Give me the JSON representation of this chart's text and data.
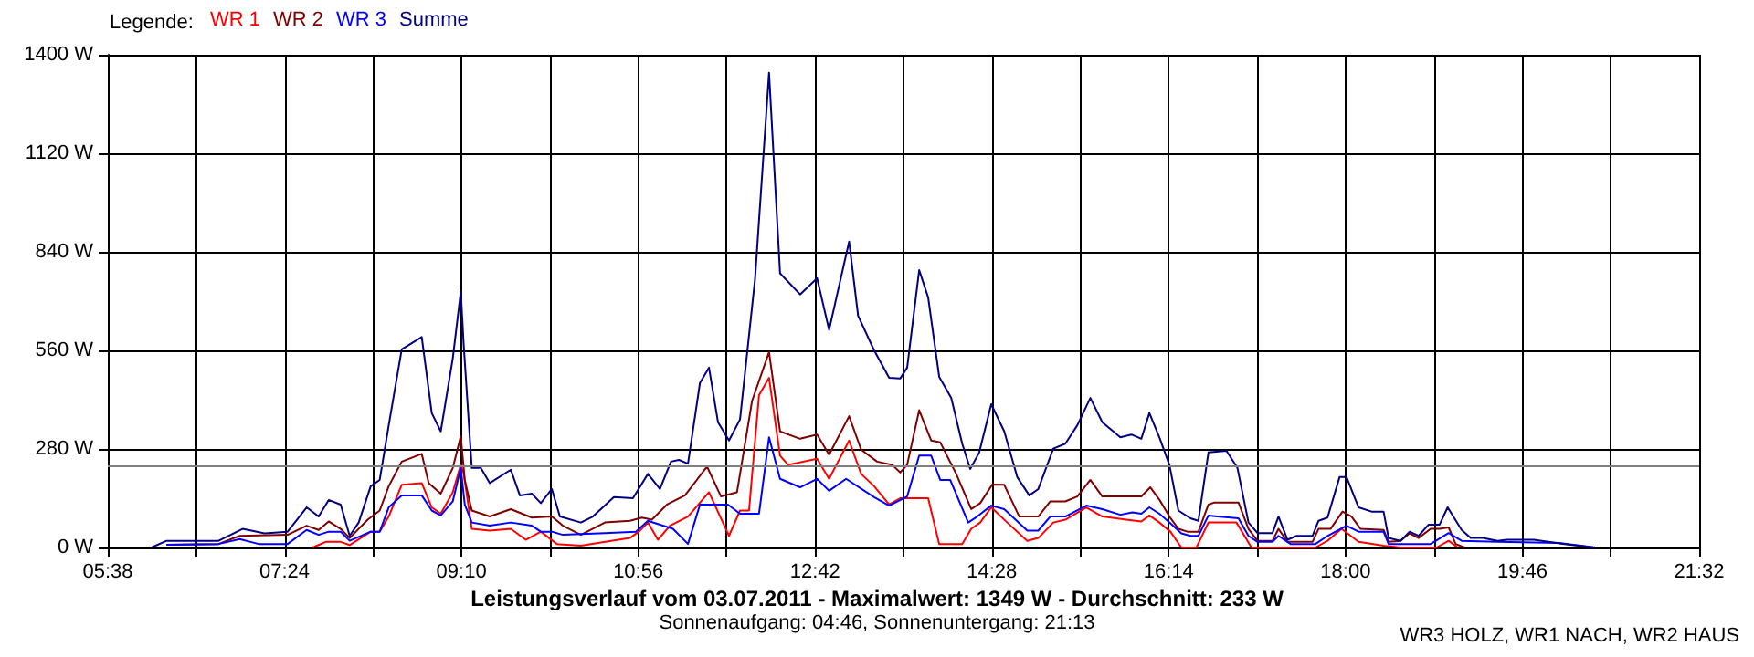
{
  "chart_data": {
    "type": "line",
    "title": "Leistungsverlauf vom 03.07.2011 - Maximalwert: 1349 W - Durchschnitt: 233 W",
    "subtitle": "Sonnenaufgang: 04:46, Sonnenuntergang: 21:13",
    "legend_title": "Legende:",
    "annotations": [
      "WR3 HOLZ, WR1 NACH, WR2 HAUS"
    ],
    "legend": "top left",
    "grid": true,
    "marker": "none",
    "line_style": "solid",
    "xlim": [
      5.6333,
      21.5333
    ],
    "xticks": [
      {
        "value": 5.6333,
        "label": "05:38"
      },
      {
        "value": 6.5167,
        "label": null
      },
      {
        "value": 7.4,
        "label": "07:24"
      },
      {
        "value": 8.2833,
        "label": null
      },
      {
        "value": 9.1667,
        "label": "09:10"
      },
      {
        "value": 10.05,
        "label": null
      },
      {
        "value": 10.9333,
        "label": "10:56"
      },
      {
        "value": 11.8167,
        "label": null
      },
      {
        "value": 12.7,
        "label": "12:42"
      },
      {
        "value": 13.5833,
        "label": null
      },
      {
        "value": 14.4667,
        "label": "14:28"
      },
      {
        "value": 15.35,
        "label": null
      },
      {
        "value": 16.2333,
        "label": "16:14"
      },
      {
        "value": 17.1167,
        "label": null
      },
      {
        "value": 18.0,
        "label": "18:00"
      },
      {
        "value": 18.8833,
        "label": null
      },
      {
        "value": 19.7667,
        "label": "19:46"
      },
      {
        "value": 20.65,
        "label": null
      },
      {
        "value": 21.5333,
        "label": "21:32"
      }
    ],
    "ylim": [
      0,
      1400
    ],
    "yticks": [
      {
        "value": 0,
        "label": "0 W"
      },
      {
        "value": 280,
        "label": "280 W"
      },
      {
        "value": 560,
        "label": "560 W"
      },
      {
        "value": 840,
        "label": "840 W"
      },
      {
        "value": 1120,
        "label": "1120 W"
      },
      {
        "value": 1400,
        "label": "1400 W"
      }
    ],
    "ref_lines": [
      {
        "axis": "y",
        "value": 233,
        "color": "#808080"
      }
    ],
    "series": [
      {
        "name": "WR 1",
        "color": "#ff0000",
        "x": [
          7.68,
          7.81,
          7.96,
          8.05,
          8.26,
          8.35,
          8.44,
          8.57,
          8.77,
          8.87,
          8.96,
          9.08,
          9.16,
          9.19,
          9.27,
          9.45,
          9.66,
          9.81,
          9.96,
          10.12,
          10.36,
          10.85,
          10.94,
          11.03,
          11.13,
          11.25,
          11.43,
          11.64,
          11.84,
          11.95,
          12.04,
          12.14,
          12.24,
          12.35,
          12.43,
          12.72,
          12.84,
          13.04,
          13.16,
          13.29,
          13.44,
          13.55,
          13.83,
          13.94,
          14.17,
          14.26,
          14.35,
          14.46,
          14.62,
          14.82,
          14.93,
          15.08,
          15.2,
          15.41,
          15.57,
          15.81,
          15.96,
          16.04,
          16.14,
          16.25,
          16.36,
          16.51,
          16.63,
          16.91,
          17.06,
          17.7,
          17.82,
          17.96,
          18.13,
          18.38,
          18.55,
          18.91,
          19.03,
          19.12
        ],
        "values": [
          0,
          16,
          16,
          7,
          45,
          45,
          88,
          178,
          183,
          114,
          96,
          157,
          235,
          209,
          53,
          48,
          53,
          22,
          45,
          10,
          5,
          27,
          45,
          71,
          22,
          62,
          88,
          157,
          33,
          105,
          105,
          433,
          482,
          261,
          235,
          252,
          195,
          304,
          209,
          174,
          122,
          140,
          140,
          10,
          10,
          53,
          71,
          114,
          71,
          19,
          27,
          71,
          79,
          114,
          88,
          79,
          74,
          91,
          71,
          45,
          0,
          0,
          71,
          71,
          0,
          0,
          19,
          53,
          16,
          5,
          0,
          0,
          19,
          0
        ]
      },
      {
        "name": "WR 2",
        "color": "#800000",
        "x": [
          6.22,
          6.74,
          6.95,
          7.43,
          7.62,
          7.74,
          7.84,
          7.96,
          8.05,
          8.23,
          8.35,
          8.44,
          8.57,
          8.77,
          8.84,
          8.96,
          9.08,
          9.16,
          9.2,
          9.27,
          9.45,
          9.66,
          9.87,
          10.07,
          10.18,
          10.36,
          10.6,
          10.85,
          10.97,
          11.07,
          11.22,
          11.4,
          11.62,
          11.76,
          11.92,
          12.07,
          12.24,
          12.35,
          12.55,
          12.72,
          12.84,
          13.04,
          13.16,
          13.32,
          13.47,
          13.55,
          13.62,
          13.74,
          13.86,
          13.95,
          14.11,
          14.26,
          14.35,
          14.47,
          14.59,
          14.74,
          14.93,
          15.05,
          15.2,
          15.32,
          15.45,
          15.57,
          15.81,
          15.96,
          16.05,
          16.14,
          16.24,
          16.33,
          16.42,
          16.53,
          16.63,
          16.69,
          16.93,
          17.03,
          17.12,
          17.27,
          17.33,
          17.42,
          17.67,
          17.73,
          17.85,
          17.97,
          18.06,
          18.15,
          18.38,
          18.43,
          18.55,
          18.64,
          18.73,
          18.85,
          18.94,
          19.03,
          19.1,
          19.19
        ],
        "values": [
          8,
          10,
          33,
          36,
          62,
          50,
          74,
          53,
          27,
          79,
          105,
          174,
          244,
          266,
          183,
          153,
          226,
          316,
          192,
          105,
          88,
          109,
          85,
          88,
          62,
          36,
          71,
          76,
          85,
          79,
          122,
          148,
          230,
          145,
          157,
          416,
          555,
          330,
          309,
          321,
          264,
          373,
          278,
          244,
          235,
          213,
          235,
          390,
          304,
          299,
          209,
          109,
          126,
          179,
          178,
          88,
          88,
          131,
          131,
          145,
          192,
          145,
          145,
          145,
          171,
          136,
          88,
          53,
          45,
          45,
          122,
          128,
          128,
          53,
          19,
          19,
          53,
          16,
          16,
          53,
          53,
          102,
          88,
          53,
          50,
          16,
          19,
          40,
          27,
          53,
          53,
          57,
          10,
          0
        ]
      },
      {
        "name": "WR 3",
        "color": "#0000ff",
        "x": [
          6.22,
          6.74,
          6.95,
          7.14,
          7.43,
          7.62,
          7.74,
          7.84,
          7.96,
          8.05,
          8.26,
          8.35,
          8.44,
          8.57,
          8.77,
          8.87,
          8.96,
          9.08,
          9.16,
          9.2,
          9.27,
          9.45,
          9.66,
          9.87,
          9.96,
          10.07,
          10.18,
          10.6,
          10.91,
          11.03,
          11.28,
          11.43,
          11.55,
          11.83,
          11.95,
          12.14,
          12.24,
          12.35,
          12.55,
          12.72,
          12.84,
          13.01,
          13.29,
          13.44,
          13.62,
          13.74,
          13.86,
          13.95,
          14.05,
          14.23,
          14.32,
          14.46,
          14.59,
          14.82,
          14.93,
          15.05,
          15.2,
          15.41,
          15.57,
          15.75,
          15.87,
          15.96,
          16.04,
          16.14,
          16.24,
          16.36,
          16.45,
          16.53,
          16.63,
          16.72,
          16.93,
          17.03,
          17.12,
          17.27,
          17.33,
          17.45,
          17.7,
          17.82,
          18.01,
          18.13,
          18.38,
          18.43,
          18.85,
          19.03,
          19.16,
          19.52,
          20.13,
          20.49
        ],
        "values": [
          8,
          10,
          24,
          10,
          10,
          50,
          36,
          45,
          45,
          19,
          45,
          45,
          114,
          148,
          148,
          105,
          91,
          131,
          226,
          122,
          71,
          62,
          71,
          62,
          45,
          45,
          36,
          41,
          45,
          76,
          53,
          10,
          122,
          122,
          96,
          96,
          313,
          195,
          171,
          195,
          161,
          195,
          143,
          119,
          145,
          261,
          261,
          192,
          192,
          71,
          88,
          119,
          109,
          48,
          48,
          88,
          88,
          119,
          109,
          93,
          100,
          96,
          114,
          96,
          71,
          40,
          33,
          33,
          91,
          88,
          83,
          33,
          16,
          16,
          33,
          10,
          10,
          33,
          62,
          45,
          45,
          10,
          10,
          41,
          19,
          16,
          13,
          0
        ]
      },
      {
        "name": "Summe",
        "color": "#000080",
        "x": [
          6.07,
          6.22,
          6.74,
          6.98,
          7.2,
          7.43,
          7.62,
          7.74,
          7.84,
          7.96,
          8.05,
          8.14,
          8.26,
          8.35,
          8.44,
          8.57,
          8.77,
          8.87,
          8.96,
          9.08,
          9.16,
          9.19,
          9.27,
          9.36,
          9.45,
          9.66,
          9.75,
          9.87,
          9.96,
          10.07,
          10.15,
          10.36,
          10.48,
          10.69,
          10.88,
          11.03,
          11.15,
          11.26,
          11.34,
          11.43,
          11.55,
          11.64,
          11.73,
          11.84,
          11.95,
          12.1,
          12.24,
          12.35,
          12.55,
          12.72,
          12.84,
          13.04,
          13.13,
          13.29,
          13.44,
          13.55,
          13.62,
          13.74,
          13.83,
          13.94,
          14.06,
          14.17,
          14.25,
          14.34,
          14.46,
          14.59,
          14.72,
          14.84,
          14.93,
          15.08,
          15.2,
          15.32,
          15.45,
          15.57,
          15.75,
          15.86,
          15.96,
          16.04,
          16.14,
          16.24,
          16.33,
          16.45,
          16.53,
          16.63,
          16.81,
          16.92,
          17.03,
          17.12,
          17.27,
          17.33,
          17.42,
          17.51,
          17.67,
          17.73,
          17.82,
          17.94,
          18.01,
          18.13,
          18.26,
          18.38,
          18.43,
          18.55,
          18.64,
          18.73,
          18.83,
          18.94,
          19.02,
          19.16,
          19.25,
          19.37,
          19.52,
          19.61,
          19.88,
          20.19,
          20.49
        ],
        "values": [
          0,
          19,
          19,
          53,
          40,
          45,
          114,
          88,
          135,
          122,
          33,
          71,
          174,
          192,
          347,
          563,
          598,
          382,
          330,
          537,
          727,
          572,
          226,
          226,
          183,
          221,
          148,
          153,
          126,
          166,
          88,
          71,
          88,
          143,
          140,
          209,
          166,
          244,
          249,
          238,
          468,
          511,
          356,
          304,
          364,
          762,
          1349,
          779,
          719,
          765,
          618,
          869,
          658,
          560,
          482,
          480,
          511,
          788,
          710,
          485,
          425,
          295,
          223,
          270,
          407,
          330,
          200,
          148,
          166,
          281,
          295,
          347,
          425,
          356,
          313,
          321,
          309,
          382,
          313,
          235,
          105,
          83,
          76,
          270,
          275,
          226,
          71,
          41,
          41,
          88,
          22,
          33,
          33,
          76,
          85,
          200,
          200,
          114,
          102,
          102,
          27,
          19,
          45,
          33,
          65,
          65,
          114,
          50,
          27,
          27,
          19,
          22,
          22,
          10,
          0
        ]
      }
    ]
  }
}
